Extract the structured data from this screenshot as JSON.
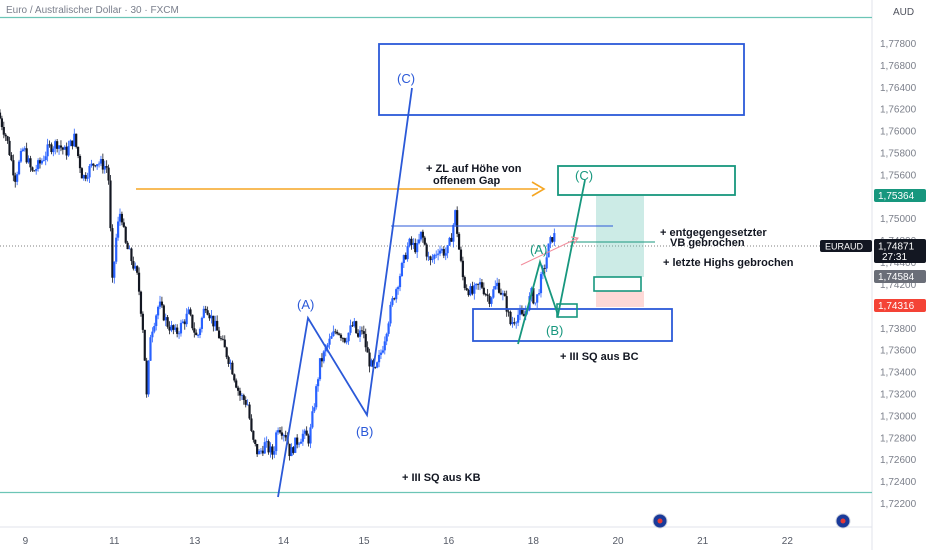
{
  "header": {
    "title": "Euro / Australischer Dollar · 30 · FXCM",
    "currency": "AUD"
  },
  "colors": {
    "up": "#2962ff",
    "down": "#131722",
    "blue": "#2b59d8",
    "green": "#17977e",
    "orange": "#f5a623",
    "teal": "#6cc5b6",
    "red": "#f44336",
    "bg": "#ffffff"
  },
  "chart_data": {
    "type": "candlestick",
    "symbol": "EURAUD",
    "ylim": [
      1.721,
      1.771
    ],
    "y_ticks": [
      "1,77800",
      "1,76800",
      "1,76400",
      "1,76200",
      "1,76000",
      "1,75800",
      "1,75600",
      "1,75200",
      "1,75000",
      "1,74800",
      "1,74400",
      "1,74200",
      "1,74000",
      "1,73800",
      "1,73600",
      "1,73400",
      "1,73200",
      "1,73000",
      "1,72800",
      "1,72600",
      "1,72400",
      "1,72200"
    ],
    "x_ticks": [
      {
        "label": "9",
        "t": 0.6
      },
      {
        "label": "11",
        "t": 2.7
      },
      {
        "label": "13",
        "t": 4.6
      },
      {
        "label": "14",
        "t": 6.7
      },
      {
        "label": "15",
        "t": 8.6
      },
      {
        "label": "16",
        "t": 10.6
      },
      {
        "label": "18",
        "t": 12.6
      },
      {
        "label": "20",
        "t": 14.6
      },
      {
        "label": "21",
        "t": 16.6
      },
      {
        "label": "22",
        "t": 18.6
      }
    ],
    "xlim": [
      0,
      20.6
    ],
    "price_path": [
      [
        0.0,
        1.761
      ],
      [
        0.2,
        1.7585
      ],
      [
        0.4,
        1.7545
      ],
      [
        0.6,
        1.7575
      ],
      [
        0.8,
        1.755
      ],
      [
        1.0,
        1.756
      ],
      [
        1.2,
        1.7575
      ],
      [
        1.4,
        1.758
      ],
      [
        1.6,
        1.757
      ],
      [
        1.8,
        1.7585
      ],
      [
        2.0,
        1.7545
      ],
      [
        2.3,
        1.7562
      ],
      [
        2.6,
        1.7555
      ],
      [
        2.7,
        1.744
      ],
      [
        2.8,
        1.749
      ],
      [
        2.9,
        1.7515
      ],
      [
        3.0,
        1.748
      ],
      [
        3.1,
        1.747
      ],
      [
        3.3,
        1.7445
      ],
      [
        3.45,
        1.7385
      ],
      [
        3.5,
        1.732
      ],
      [
        3.6,
        1.739
      ],
      [
        3.8,
        1.742
      ],
      [
        4.0,
        1.74
      ],
      [
        4.2,
        1.739
      ],
      [
        4.5,
        1.741
      ],
      [
        4.7,
        1.7385
      ],
      [
        4.9,
        1.742
      ],
      [
        5.1,
        1.74
      ],
      [
        5.3,
        1.738
      ],
      [
        5.5,
        1.736
      ],
      [
        5.7,
        1.733
      ],
      [
        5.9,
        1.732
      ],
      [
        6.0,
        1.7285
      ],
      [
        6.15,
        1.727
      ],
      [
        6.3,
        1.728
      ],
      [
        6.5,
        1.727
      ],
      [
        6.6,
        1.73
      ],
      [
        6.8,
        1.729
      ],
      [
        6.9,
        1.727
      ],
      [
        7.0,
        1.728
      ],
      [
        7.2,
        1.729
      ],
      [
        7.35,
        1.7285
      ],
      [
        7.5,
        1.733
      ],
      [
        7.6,
        1.736
      ],
      [
        7.8,
        1.738
      ],
      [
        8.0,
        1.7395
      ],
      [
        8.2,
        1.7385
      ],
      [
        8.4,
        1.74
      ],
      [
        8.5,
        1.7385
      ],
      [
        8.6,
        1.7395
      ],
      [
        8.75,
        1.7365
      ],
      [
        8.9,
        1.735
      ],
      [
        9.1,
        1.738
      ],
      [
        9.3,
        1.742
      ],
      [
        9.5,
        1.745
      ],
      [
        9.7,
        1.748
      ],
      [
        9.9,
        1.7475
      ],
      [
        10.0,
        1.749
      ],
      [
        10.2,
        1.746
      ],
      [
        10.4,
        1.7475
      ],
      [
        10.6,
        1.747
      ],
      [
        10.7,
        1.7485
      ],
      [
        10.8,
        1.751
      ],
      [
        10.9,
        1.747
      ],
      [
        11.0,
        1.744
      ],
      [
        11.2,
        1.743
      ],
      [
        11.4,
        1.744
      ],
      [
        11.6,
        1.7425
      ],
      [
        11.8,
        1.744
      ],
      [
        12.0,
        1.742
      ],
      [
        12.1,
        1.74
      ],
      [
        12.3,
        1.741
      ],
      [
        12.4,
        1.7405
      ],
      [
        12.6,
        1.743
      ],
      [
        12.7,
        1.742
      ],
      [
        12.8,
        1.744
      ],
      [
        12.9,
        1.7455
      ],
      [
        13.0,
        1.7475
      ],
      [
        13.1,
        1.7487
      ]
    ],
    "current_price": {
      "symbol": "EURAUD",
      "value": "1,74871",
      "timer": "27:31",
      "y": 1.7487
    },
    "price_labels": [
      {
        "value": "1,75364",
        "y": 1.75364,
        "color": "#17977e"
      },
      {
        "value": "1,74584",
        "y": 1.74584,
        "color": "#6a6e78"
      },
      {
        "value": "1,74316",
        "y": 1.74316,
        "color": "#f44336"
      }
    ]
  },
  "annotations": {
    "c_upper": "(C)",
    "a_left": "(A)",
    "b_left": "(B)",
    "c_green": "(C)",
    "a_green": "(A)",
    "b_green": "(B)",
    "gap_line1": "+ ZL auf Höhe von",
    "gap_line2": "offenem Gap",
    "vb_line1": "+ entgegengesetzter",
    "vb_line2": "VB gebrochen",
    "highs": "+ letzte Highs gebrochen",
    "sq_bc": "+ III SQ aus BC",
    "sq_kb": "+ III SQ aus KB"
  }
}
